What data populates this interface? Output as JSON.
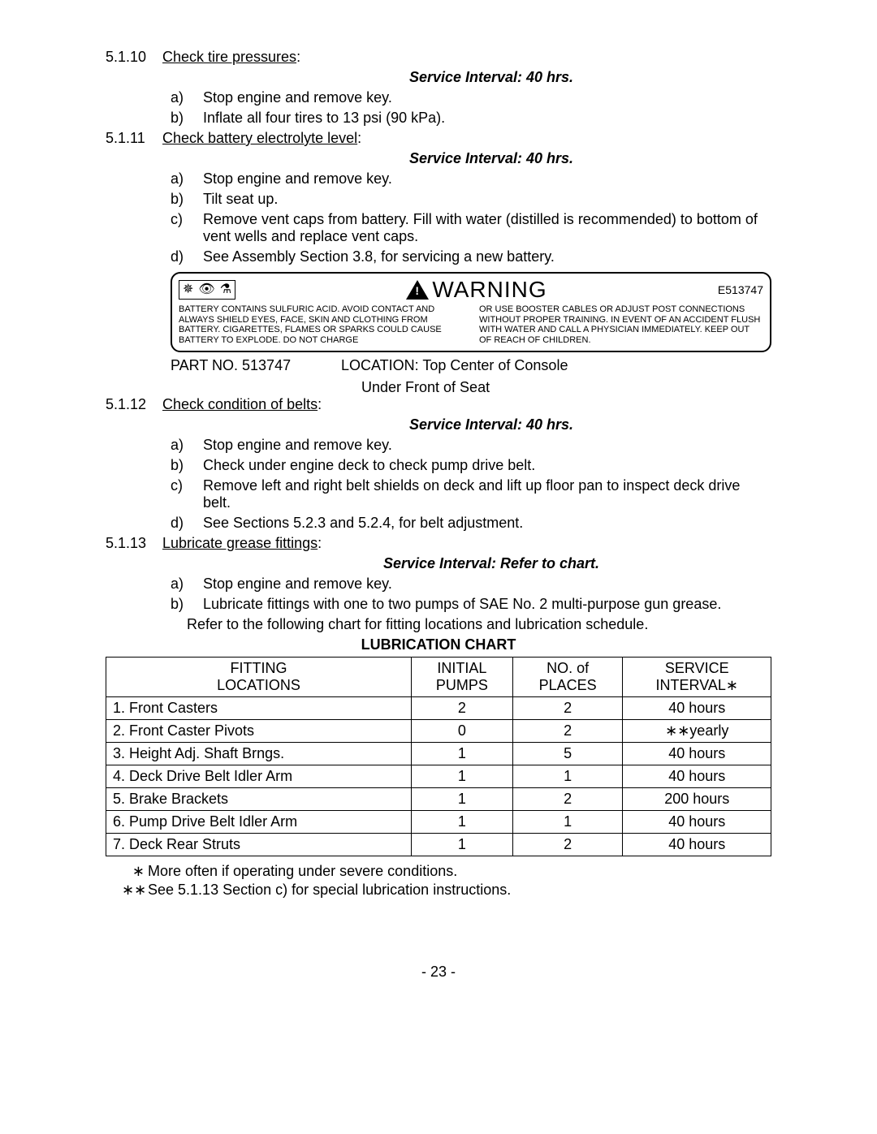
{
  "sections": {
    "s5110": {
      "num": "5.1.10",
      "head": "Check tire pressures",
      "interval": "Service Interval: 40 hrs.",
      "steps": {
        "a": "Stop engine and remove key.",
        "b": "Inflate all four tires to 13 psi (90 kPa)."
      }
    },
    "s5111": {
      "num": "5.1.11",
      "head": "Check battery electrolyte level",
      "interval": "Service Interval: 40 hrs.",
      "steps": {
        "a": "Stop engine and remove key.",
        "b": "Tilt seat up.",
        "c": "Remove vent caps from battery. Fill with water (distilled is recommended) to bottom of vent wells and replace vent caps.",
        "d": "See Assembly Section 3.8, for servicing a new battery."
      }
    },
    "s5112": {
      "num": "5.1.12",
      "head": "Check condition of belts",
      "interval": "Service Interval: 40 hrs.",
      "steps": {
        "a": "Stop engine and remove key.",
        "b": "Check under engine deck to check pump drive belt.",
        "c": "Remove left and right belt shields on deck and lift up floor pan to inspect deck drive belt.",
        "d": "See Sections 5.2.3 and 5.2.4, for belt adjustment."
      }
    },
    "s5113": {
      "num": "5.1.13",
      "head": "Lubricate grease fittings",
      "interval": "Service Interval: Refer to chart.",
      "steps": {
        "a": "Stop engine and remove key.",
        "b": "Lubricate fittings with one to two pumps of SAE No. 2 multi-purpose gun grease."
      },
      "refer": "Refer to the following chart for fitting locations and lubrication schedule."
    }
  },
  "warning": {
    "title": "WARNING",
    "code": "E513747",
    "icon_glyphs": {
      "nospark": "✵",
      "noeye": "👁",
      "noflame": "⚗"
    },
    "col_left": "BATTERY CONTAINS SULFURIC ACID. AVOID CONTACT AND ALWAYS SHIELD EYES, FACE, SKIN AND CLOTHING FROM BATTERY. CIGARETTES, FLAMES OR SPARKS COULD CAUSE BATTERY TO EXPLODE. DO NOT CHARGE",
    "col_right": "OR USE BOOSTER CABLES OR ADJUST POST CONNECTIONS WITHOUT PROPER TRAINING. IN EVENT OF AN ACCIDENT FLUSH WITH WATER AND CALL A PHYSICIAN IMMEDIATELY. KEEP OUT OF REACH OF CHILDREN."
  },
  "part_loc": {
    "part": "PART NO. 513747",
    "loc_label": "LOCATION: Top Center of Console",
    "loc_sub": "Under Front of Seat"
  },
  "lub_chart": {
    "title": "LUBRICATION CHART",
    "headers": {
      "c1a": "FITTING",
      "c1b": "LOCATIONS",
      "c2a": "INITIAL",
      "c2b": "PUMPS",
      "c3a": "NO. of",
      "c3b": "PLACES",
      "c4a": "SERVICE",
      "c4b": "INTERVAL∗"
    },
    "rows": [
      {
        "loc": "1. Front Casters",
        "pumps": "2",
        "places": "2",
        "interval": "40 hours"
      },
      {
        "loc": "2. Front Caster Pivots",
        "pumps": "0",
        "places": "2",
        "interval": "∗∗yearly"
      },
      {
        "loc": "3. Height Adj. Shaft Brngs.",
        "pumps": "1",
        "places": "5",
        "interval": "40 hours"
      },
      {
        "loc": "4. Deck Drive Belt Idler Arm",
        "pumps": "1",
        "places": "1",
        "interval": "40 hours"
      },
      {
        "loc": "5. Brake Brackets",
        "pumps": "1",
        "places": "2",
        "interval": "200 hours"
      },
      {
        "loc": "6. Pump Drive Belt Idler Arm",
        "pumps": "1",
        "places": "1",
        "interval": "40 hours"
      },
      {
        "loc": "7. Deck Rear Struts",
        "pumps": "1",
        "places": "2",
        "interval": "40 hours"
      }
    ]
  },
  "footnotes": {
    "n1_mark": "∗",
    "n1": "More often if operating under severe conditions.",
    "n2_mark": "∗∗",
    "n2": "See 5.1.13 Section c) for special lubrication instructions."
  },
  "page_number": "- 23 -"
}
